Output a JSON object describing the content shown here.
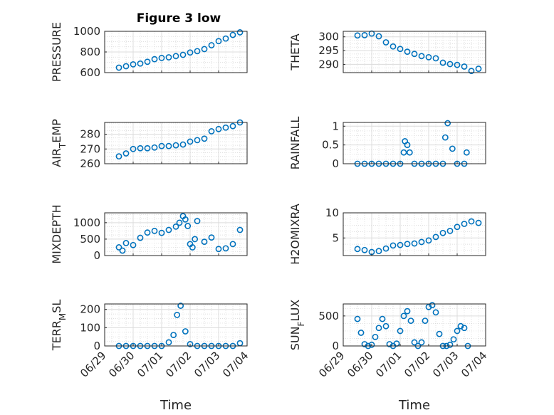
{
  "figure_title": "Figure 3 low",
  "marker_color": "#0072BD",
  "chart_data": [
    {
      "type": "scatter",
      "name": "PRESSURE",
      "title": "Figure 3 low",
      "ylabel": "PRESSURE",
      "ylabel_sub": "",
      "xlabel": "",
      "ylim": [
        600,
        1000
      ],
      "yticks": [
        600,
        800,
        1000
      ],
      "xlim": [
        "06/29",
        "07/04"
      ],
      "x": [
        "06/29 12:00",
        "06/29 18:00",
        "06/30 00:00",
        "06/30 06:00",
        "06/30 12:00",
        "06/30 18:00",
        "07/01 00:00",
        "07/01 06:00",
        "07/01 12:00",
        "07/01 18:00",
        "07/02 00:00",
        "07/02 06:00",
        "07/02 12:00",
        "07/02 18:00",
        "07/03 00:00",
        "07/03 06:00",
        "07/03 12:00",
        "07/03 18:00"
      ],
      "y": [
        648,
        662,
        680,
        688,
        705,
        730,
        742,
        748,
        760,
        772,
        795,
        808,
        828,
        865,
        905,
        930,
        965,
        990
      ]
    },
    {
      "type": "scatter",
      "name": "THETA",
      "title": "",
      "ylabel": "THETA",
      "ylabel_sub": "",
      "xlabel": "",
      "ylim": [
        287,
        302
      ],
      "yticks": [
        290,
        295,
        300
      ],
      "xlim": [
        "06/29",
        "07/04"
      ],
      "x": [
        "06/29 12:00",
        "06/29 18:00",
        "06/30 00:00",
        "06/30 06:00",
        "06/30 12:00",
        "06/30 18:00",
        "07/01 00:00",
        "07/01 06:00",
        "07/01 12:00",
        "07/01 18:00",
        "07/02 00:00",
        "07/02 06:00",
        "07/02 12:00",
        "07/02 18:00",
        "07/03 00:00",
        "07/03 06:00",
        "07/03 12:00",
        "07/03 18:00"
      ],
      "y": [
        300.5,
        300.6,
        301.2,
        300.2,
        298.0,
        296.5,
        295.6,
        294.6,
        293.8,
        293.0,
        292.6,
        292.2,
        290.6,
        290.1,
        289.8,
        289.2,
        287.6,
        288.4
      ]
    },
    {
      "type": "scatter",
      "name": "AIR_TEMP",
      "title": "",
      "ylabel": "AIR",
      "ylabel_sub": "T",
      "ylabel_rest": "EMP",
      "xlabel": "",
      "ylim": [
        260,
        288
      ],
      "yticks": [
        260,
        270,
        280
      ],
      "xlim": [
        "06/29",
        "07/04"
      ],
      "x": [
        "06/29 12:00",
        "06/29 18:00",
        "06/30 00:00",
        "06/30 06:00",
        "06/30 12:00",
        "06/30 18:00",
        "07/01 00:00",
        "07/01 06:00",
        "07/01 12:00",
        "07/01 18:00",
        "07/02 00:00",
        "07/02 06:00",
        "07/02 12:00",
        "07/02 18:00",
        "07/03 00:00",
        "07/03 06:00",
        "07/03 12:00",
        "07/03 18:00"
      ],
      "y": [
        265,
        267,
        270,
        270.5,
        270.5,
        271,
        272,
        272,
        272.5,
        273,
        275,
        276,
        277,
        282,
        283.5,
        284.5,
        285.5,
        288
      ]
    },
    {
      "type": "scatter",
      "name": "RAINFALL",
      "title": "",
      "ylabel": "RAINFALL",
      "ylabel_sub": "",
      "xlabel": "",
      "ylim": [
        0,
        1.1
      ],
      "yticks": [
        0,
        0.5,
        1
      ],
      "xlim": [
        "06/29",
        "07/04"
      ],
      "x": [
        "06/29 12:00",
        "06/29 18:00",
        "06/30 00:00",
        "06/30 06:00",
        "06/30 12:00",
        "06/30 18:00",
        "07/01 00:00",
        "07/01 03:00",
        "07/01 04:00",
        "07/01 06:00",
        "07/01 08:00",
        "07/01 12:00",
        "07/01 18:00",
        "07/02 00:00",
        "07/02 06:00",
        "07/02 12:00",
        "07/02 14:00",
        "07/02 16:00",
        "07/02 20:00",
        "07/03 00:00",
        "07/03 06:00",
        "07/03 08:00"
      ],
      "y": [
        0,
        0,
        0,
        0,
        0,
        0,
        0,
        0.3,
        0.6,
        0.5,
        0.3,
        0,
        0,
        0,
        0,
        0,
        0.7,
        1.08,
        0.4,
        0,
        0,
        0.3
      ]
    },
    {
      "type": "scatter",
      "name": "MIXDEPTH",
      "title": "",
      "ylabel": "MIXDEPTH",
      "ylabel_sub": "",
      "xlabel": "",
      "ylim": [
        0,
        1300
      ],
      "yticks": [
        0,
        500,
        1000
      ],
      "xlim": [
        "06/29",
        "07/04"
      ],
      "x": [
        "06/29 12:00",
        "06/29 15:00",
        "06/29 18:00",
        "06/30 00:00",
        "06/30 06:00",
        "06/30 12:00",
        "06/30 18:00",
        "07/01 00:00",
        "07/01 06:00",
        "07/01 12:00",
        "07/01 15:00",
        "07/01 18:00",
        "07/01 20:00",
        "07/01 22:00",
        "07/02 00:00",
        "07/02 02:00",
        "07/02 04:00",
        "07/02 06:00",
        "07/02 12:00",
        "07/02 18:00",
        "07/03 00:00",
        "07/03 06:00",
        "07/03 12:00",
        "07/03 18:00"
      ],
      "y": [
        250,
        150,
        380,
        320,
        540,
        700,
        750,
        690,
        780,
        880,
        1000,
        1200,
        1100,
        900,
        350,
        250,
        500,
        1050,
        420,
        550,
        200,
        220,
        350,
        780
      ]
    },
    {
      "type": "scatter",
      "name": "H2OMIXRA",
      "title": "",
      "ylabel": "H2OMIXRA",
      "ylabel_sub": "",
      "xlabel": "",
      "ylim": [
        1.5,
        10
      ],
      "yticks": [
        5,
        10
      ],
      "xlim": [
        "06/29",
        "07/04"
      ],
      "x": [
        "06/29 12:00",
        "06/29 18:00",
        "06/30 00:00",
        "06/30 06:00",
        "06/30 12:00",
        "06/30 18:00",
        "07/01 00:00",
        "07/01 06:00",
        "07/01 12:00",
        "07/01 18:00",
        "07/02 00:00",
        "07/02 06:00",
        "07/02 12:00",
        "07/02 18:00",
        "07/03 00:00",
        "07/03 06:00",
        "07/03 12:00",
        "07/03 18:00"
      ],
      "y": [
        2.8,
        2.6,
        2.2,
        2.4,
        2.9,
        3.5,
        3.6,
        3.8,
        3.9,
        4.2,
        4.5,
        5.2,
        6.0,
        6.4,
        7.2,
        7.8,
        8.3,
        8.0
      ]
    },
    {
      "type": "scatter",
      "name": "TERR_MSL",
      "title": "",
      "ylabel": "TERR",
      "ylabel_sub": "M",
      "ylabel_rest": "SL",
      "xlabel": "Time",
      "ylim": [
        0,
        230
      ],
      "yticks": [
        0,
        100,
        200
      ],
      "xlim": [
        "06/29",
        "07/04"
      ],
      "xticks": [
        "06/29",
        "06/30",
        "07/01",
        "07/02",
        "07/03",
        "07/04"
      ],
      "x": [
        "06/29 12:00",
        "06/29 18:00",
        "06/30 00:00",
        "06/30 06:00",
        "06/30 12:00",
        "06/30 18:00",
        "07/01 00:00",
        "07/01 06:00",
        "07/01 10:00",
        "07/01 13:00",
        "07/01 16:00",
        "07/01 20:00",
        "07/02 00:00",
        "07/02 06:00",
        "07/02 12:00",
        "07/02 18:00",
        "07/03 00:00",
        "07/03 06:00",
        "07/03 12:00",
        "07/03 18:00"
      ],
      "y": [
        0,
        0,
        0,
        0,
        0,
        0,
        0,
        20,
        60,
        170,
        220,
        80,
        10,
        0,
        0,
        0,
        0,
        0,
        0,
        15
      ]
    },
    {
      "type": "scatter",
      "name": "SUN_FLUX",
      "title": "",
      "ylabel": "SUN",
      "ylabel_sub": "F",
      "ylabel_rest": "LUX",
      "xlabel": "Time",
      "ylim": [
        0,
        700
      ],
      "yticks": [
        0,
        500
      ],
      "xlim": [
        "06/29",
        "07/04"
      ],
      "xticks": [
        "06/29",
        "06/30",
        "07/01",
        "07/02",
        "07/03",
        "07/04"
      ],
      "x": [
        "06/29 12:00",
        "06/29 15:00",
        "06/29 18:00",
        "06/29 21:00",
        "06/30 00:00",
        "06/30 03:00",
        "06/30 06:00",
        "06/30 09:00",
        "06/30 12:00",
        "06/30 15:00",
        "06/30 18:00",
        "06/30 21:00",
        "07/01 00:00",
        "07/01 03:00",
        "07/01 06:00",
        "07/01 09:00",
        "07/01 12:00",
        "07/01 15:00",
        "07/01 18:00",
        "07/01 21:00",
        "07/02 00:00",
        "07/02 03:00",
        "07/02 06:00",
        "07/02 09:00",
        "07/02 12:00",
        "07/02 15:00",
        "07/02 18:00",
        "07/02 21:00",
        "07/03 00:00",
        "07/03 03:00",
        "07/03 06:00",
        "07/03 09:00"
      ],
      "y": [
        450,
        220,
        30,
        0,
        20,
        150,
        300,
        450,
        330,
        30,
        0,
        40,
        250,
        500,
        580,
        420,
        60,
        0,
        60,
        420,
        650,
        680,
        560,
        200,
        0,
        0,
        20,
        110,
        250,
        330,
        300,
        0
      ]
    }
  ]
}
